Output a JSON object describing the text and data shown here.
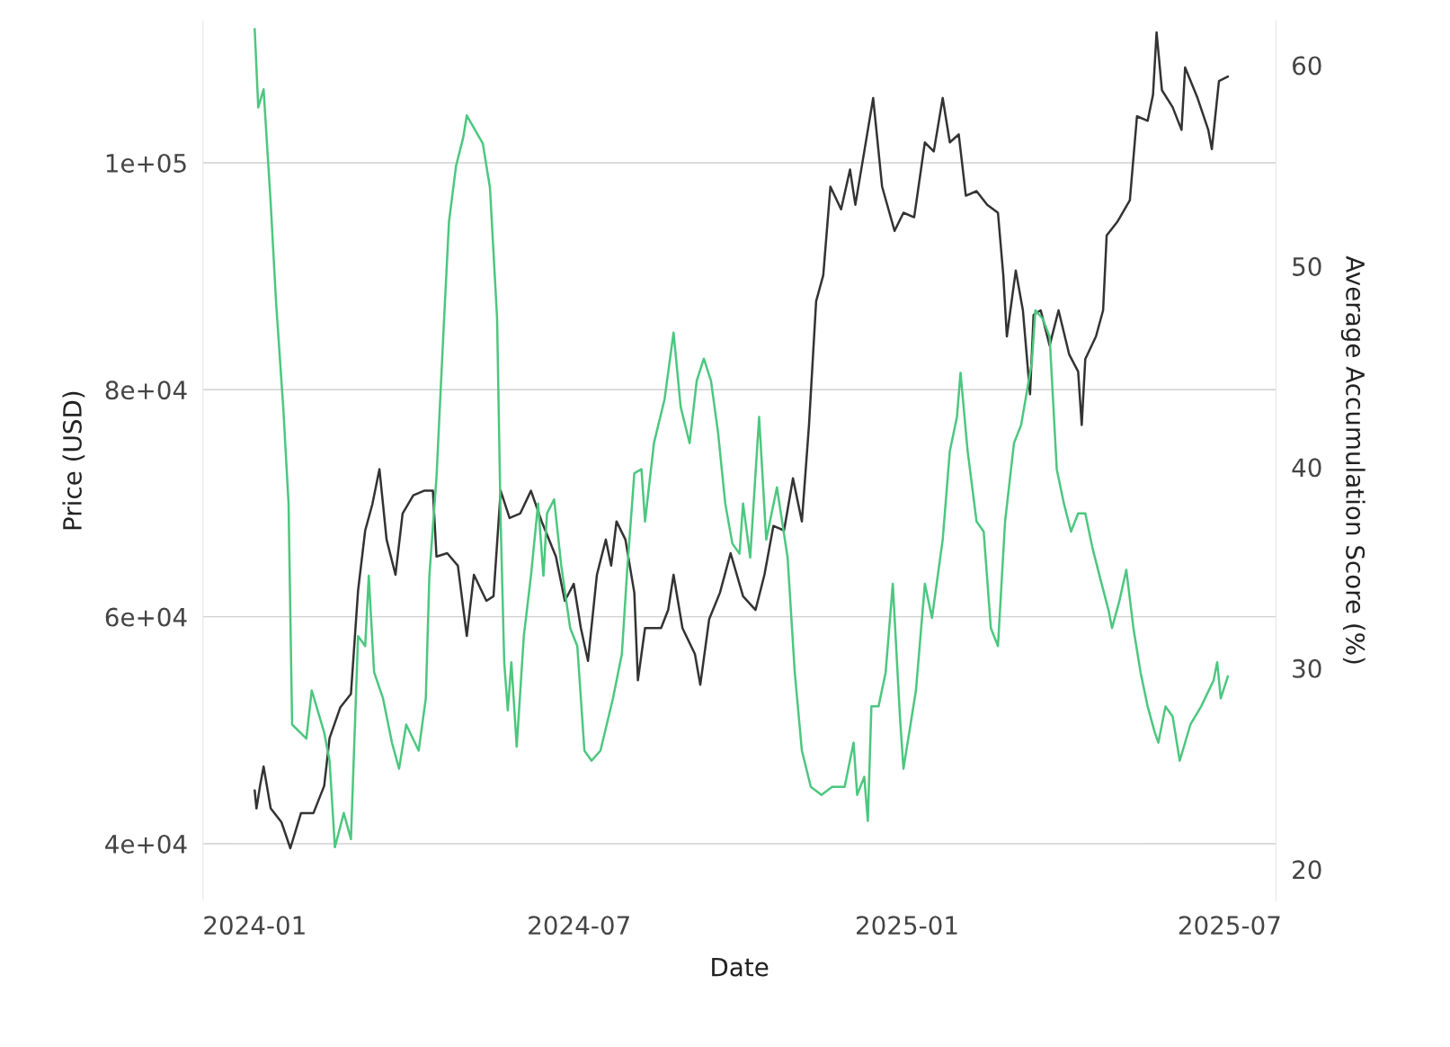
{
  "chart_data": {
    "type": "line",
    "xlabel": "Date",
    "ylabel": "Price (USD)",
    "y2label": "Average Accumulation Score (%)",
    "xlim": [
      "2023-12-03",
      "2025-07-27"
    ],
    "xticks": [
      {
        "value": "2024-01-01",
        "label": "2024-01"
      },
      {
        "value": "2024-07-01",
        "label": "2024-07"
      },
      {
        "value": "2025-01-01",
        "label": "2025-01"
      },
      {
        "value": "2025-07-01",
        "label": "2025-07"
      }
    ],
    "yticks": [
      {
        "value": 40000,
        "label": "4e+04"
      },
      {
        "value": 60000,
        "label": "6e+04"
      },
      {
        "value": 80000,
        "label": "8e+04"
      },
      {
        "value": 100000,
        "label": "1e+05"
      }
    ],
    "ylim": [
      35000,
      112500
    ],
    "y2lim": [
      18.45,
      62.2
    ],
    "y2ticks": [
      20,
      30,
      40,
      50,
      60
    ],
    "grid": "y",
    "line_style": "solid",
    "marker": "none",
    "series": [
      {
        "color": "#333333",
        "axis": "y",
        "x": [
          "2024-01-01",
          "2024-01-02",
          "2024-01-04",
          "2024-01-06",
          "2024-01-10",
          "2024-01-16",
          "2024-01-21",
          "2024-01-27",
          "2024-02-03",
          "2024-02-09",
          "2024-02-12",
          "2024-02-18",
          "2024-02-24",
          "2024-02-28",
          "2024-03-03",
          "2024-03-07",
          "2024-03-11",
          "2024-03-15",
          "2024-03-20",
          "2024-03-24",
          "2024-03-30",
          "2024-04-05",
          "2024-04-10",
          "2024-04-12",
          "2024-04-18",
          "2024-04-24",
          "2024-04-29",
          "2024-05-03",
          "2024-05-10",
          "2024-05-14",
          "2024-05-18",
          "2024-05-23",
          "2024-05-29",
          "2024-06-04",
          "2024-06-10",
          "2024-06-18",
          "2024-06-23",
          "2024-06-28",
          "2024-07-02",
          "2024-07-06",
          "2024-07-11",
          "2024-07-16",
          "2024-07-19",
          "2024-07-22",
          "2024-07-27",
          "2024-08-01",
          "2024-08-03",
          "2024-08-07",
          "2024-08-16",
          "2024-08-20",
          "2024-08-23",
          "2024-08-28",
          "2024-09-04",
          "2024-09-07",
          "2024-09-12",
          "2024-09-18",
          "2024-09-24",
          "2024-10-01",
          "2024-10-08",
          "2024-10-13",
          "2024-10-18",
          "2024-10-24",
          "2024-10-29",
          "2024-11-03",
          "2024-11-07",
          "2024-11-11",
          "2024-11-15",
          "2024-11-19",
          "2024-11-25",
          "2024-11-30",
          "2024-12-03",
          "2024-12-08",
          "2024-12-13",
          "2024-12-18",
          "2024-12-25",
          "2024-12-30",
          "2025-01-05",
          "2025-01-11",
          "2025-01-16",
          "2025-01-21",
          "2025-01-25",
          "2025-01-30",
          "2025-02-03",
          "2025-02-09",
          "2025-02-15",
          "2025-02-21",
          "2025-02-24",
          "2025-02-26",
          "2025-03-03",
          "2025-03-07",
          "2025-03-11",
          "2025-03-13",
          "2025-03-17",
          "2025-03-22",
          "2025-03-27",
          "2025-04-02",
          "2025-04-07",
          "2025-04-09",
          "2025-04-11",
          "2025-04-17",
          "2025-04-21",
          "2025-04-23",
          "2025-04-29",
          "2025-05-06",
          "2025-05-10",
          "2025-05-16",
          "2025-05-19",
          "2025-05-21",
          "2025-05-24",
          "2025-05-30",
          "2025-06-04",
          "2025-06-06",
          "2025-06-13",
          "2025-06-19",
          "2025-06-21",
          "2025-06-25",
          "2025-06-30"
        ],
        "values": [
          44700,
          43100,
          45100,
          46800,
          43100,
          41900,
          39600,
          42700,
          42700,
          45100,
          49300,
          52000,
          53200,
          62300,
          67600,
          69900,
          73000,
          66800,
          63700,
          69100,
          70700,
          71100,
          71100,
          65300,
          65600,
          64500,
          58300,
          63700,
          61400,
          61800,
          71100,
          68700,
          69100,
          71100,
          68400,
          65300,
          61400,
          62900,
          59000,
          56100,
          63700,
          66800,
          64500,
          68400,
          66800,
          62100,
          54400,
          59000,
          59000,
          60600,
          63700,
          59000,
          56700,
          54000,
          59800,
          62100,
          65600,
          61800,
          60600,
          63700,
          68000,
          67600,
          72200,
          68400,
          76900,
          87800,
          90100,
          97900,
          95900,
          99400,
          96300,
          101000,
          105700,
          97900,
          94000,
          95600,
          95200,
          101800,
          101000,
          105700,
          101800,
          102500,
          97100,
          97500,
          96300,
          95600,
          90100,
          84700,
          90500,
          87000,
          79600,
          86600,
          87000,
          83900,
          87000,
          83100,
          81600,
          76900,
          82700,
          84700,
          87000,
          93600,
          94800,
          96700,
          104100,
          103700,
          106000,
          111500,
          106400,
          104900,
          102900,
          108400,
          105700,
          102900,
          101200,
          107200,
          107600
        ]
      },
      {
        "color": "#4cc77f",
        "axis": "y2",
        "x": [
          "2024-01-01",
          "2024-01-03",
          "2024-01-06",
          "2024-01-10",
          "2024-01-13",
          "2024-01-17",
          "2024-01-20",
          "2024-01-22",
          "2024-01-30",
          "2024-02-02",
          "2024-02-09",
          "2024-02-12",
          "2024-02-15",
          "2024-02-20",
          "2024-02-24",
          "2024-02-28",
          "2024-03-03",
          "2024-03-05",
          "2024-03-08",
          "2024-03-13",
          "2024-03-18",
          "2024-03-22",
          "2024-03-26",
          "2024-04-02",
          "2024-04-06",
          "2024-04-08",
          "2024-04-12",
          "2024-04-16",
          "2024-04-19",
          "2024-04-23",
          "2024-04-27",
          "2024-04-29",
          "2024-05-08",
          "2024-05-12",
          "2024-05-16",
          "2024-05-18",
          "2024-05-20",
          "2024-05-22",
          "2024-05-24",
          "2024-05-27",
          "2024-05-31",
          "2024-06-04",
          "2024-06-08",
          "2024-06-11",
          "2024-06-13",
          "2024-06-17",
          "2024-06-21",
          "2024-06-26",
          "2024-06-30",
          "2024-07-04",
          "2024-07-08",
          "2024-07-13",
          "2024-07-20",
          "2024-07-25",
          "2024-07-28",
          "2024-08-01",
          "2024-08-05",
          "2024-08-07",
          "2024-08-12",
          "2024-08-18",
          "2024-08-23",
          "2024-08-27",
          "2024-09-01",
          "2024-09-05",
          "2024-09-09",
          "2024-09-13",
          "2024-09-17",
          "2024-09-21",
          "2024-09-25",
          "2024-09-29",
          "2024-10-01",
          "2024-10-05",
          "2024-10-10",
          "2024-10-14",
          "2024-10-20",
          "2024-10-26",
          "2024-10-30",
          "2024-11-03",
          "2024-11-08",
          "2024-11-14",
          "2024-11-20",
          "2024-11-27",
          "2024-12-02",
          "2024-12-04",
          "2024-12-08",
          "2024-12-10",
          "2024-12-12",
          "2024-12-16",
          "2024-12-20",
          "2024-12-24",
          "2024-12-28",
          "2024-12-30",
          "2025-01-06",
          "2025-01-11",
          "2025-01-15",
          "2025-01-21",
          "2025-01-25",
          "2025-01-29",
          "2025-01-31",
          "2025-02-04",
          "2025-02-09",
          "2025-02-13",
          "2025-02-17",
          "2025-02-21",
          "2025-02-25",
          "2025-03-02",
          "2025-03-06",
          "2025-03-12",
          "2025-03-14",
          "2025-03-18",
          "2025-03-22",
          "2025-03-26",
          "2025-03-30",
          "2025-04-03",
          "2025-04-07",
          "2025-04-11",
          "2025-04-15",
          "2025-04-19",
          "2025-04-24",
          "2025-04-26",
          "2025-04-30",
          "2025-05-04",
          "2025-05-08",
          "2025-05-12",
          "2025-05-16",
          "2025-05-20",
          "2025-05-22",
          "2025-05-26",
          "2025-05-30",
          "2025-06-03",
          "2025-06-09",
          "2025-06-15",
          "2025-06-22",
          "2025-06-24",
          "2025-06-26",
          "2025-06-30"
        ],
        "values": [
          61.8,
          57.9,
          58.8,
          53.1,
          48.2,
          43.0,
          38.2,
          27.2,
          26.5,
          28.9,
          26.8,
          25.4,
          21.1,
          22.8,
          21.5,
          31.6,
          31.1,
          34.6,
          29.8,
          28.5,
          26.3,
          25.0,
          27.2,
          25.9,
          28.5,
          34.6,
          39.5,
          46.9,
          52.2,
          55.0,
          56.4,
          57.5,
          56.1,
          53.9,
          47.4,
          37.3,
          30.3,
          27.9,
          30.3,
          26.1,
          31.6,
          34.6,
          38.2,
          34.6,
          37.7,
          38.4,
          35.1,
          32.0,
          31.1,
          25.9,
          25.4,
          25.9,
          28.5,
          30.7,
          34.9,
          39.7,
          39.9,
          37.3,
          41.2,
          43.4,
          46.7,
          43.0,
          41.2,
          44.3,
          45.4,
          44.3,
          41.7,
          38.2,
          36.2,
          35.7,
          38.2,
          35.5,
          42.5,
          36.4,
          39.0,
          35.5,
          29.8,
          25.9,
          24.1,
          23.7,
          24.1,
          24.1,
          26.3,
          23.7,
          24.6,
          22.4,
          28.1,
          28.1,
          29.8,
          34.2,
          27.6,
          25.0,
          28.9,
          34.2,
          32.5,
          36.4,
          40.8,
          42.5,
          44.7,
          40.8,
          37.3,
          36.8,
          32.0,
          31.1,
          37.3,
          41.2,
          42.1,
          45.2,
          47.8,
          47.4,
          46.5,
          39.9,
          38.2,
          36.8,
          37.7,
          37.7,
          36.0,
          34.6,
          32.9,
          32.0,
          33.3,
          34.9,
          32.0,
          29.8,
          28.1,
          26.8,
          26.3,
          28.1,
          27.6,
          25.4,
          27.2,
          28.1,
          29.4,
          30.3,
          28.5,
          29.6
        ]
      }
    ]
  }
}
